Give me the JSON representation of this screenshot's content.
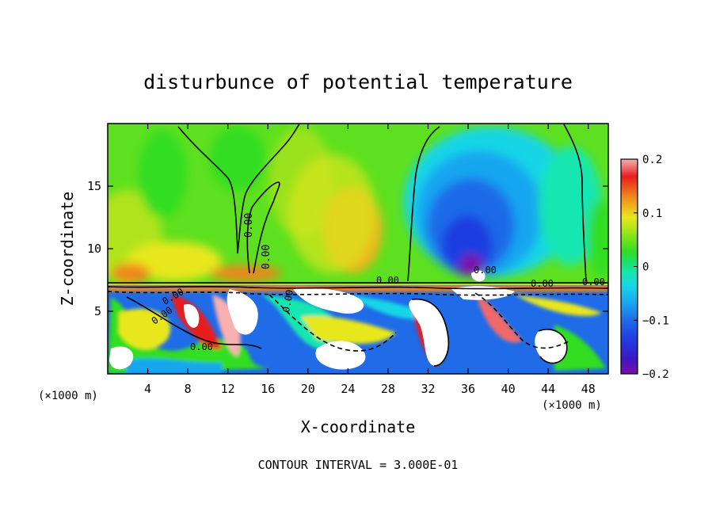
{
  "chart_data": {
    "type": "heatmap",
    "title": "disturbunce of potential temperature",
    "xlabel": "X-coordinate",
    "ylabel": "Z-coordinate",
    "x_unit_label": "(×1000 m)",
    "x_unit_label_right": "(×1000 m)",
    "xlim": [
      0,
      50
    ],
    "ylim": [
      0,
      20
    ],
    "x_ticks": [
      4,
      8,
      12,
      16,
      20,
      24,
      28,
      32,
      36,
      40,
      44,
      48
    ],
    "y_ticks": [
      5,
      10,
      15
    ],
    "colorbar": {
      "min": -0.2,
      "max": 0.2,
      "tick_values": [
        0.2,
        0.1,
        0,
        -0.1,
        -0.2
      ],
      "tick_labels": [
        "0.2",
        "0.1",
        "0",
        "−0.1",
        "−0.2"
      ],
      "colors": [
        "#7a0ea8",
        "#3f16c4",
        "#1f3de0",
        "#1f6be8",
        "#18a6f0",
        "#17d6e6",
        "#17e6b0",
        "#19e06c",
        "#33dd22",
        "#77e21a",
        "#b5e51a",
        "#e8e71c",
        "#f0b21c",
        "#f0841c",
        "#ea4a1c",
        "#e81c1c",
        "#f06a6a",
        "#f8b0b0"
      ]
    },
    "contour_labels": [
      "0.00",
      "0.00",
      "0.00",
      "0.00",
      "0.00",
      "0.00",
      "0.00",
      "0.00",
      "0.00",
      "0.00"
    ],
    "footer": "CONTOUR INTERVAL = 3.000E-01",
    "fields": [
      {
        "name": "upper-background",
        "value": 0.02
      },
      {
        "name": "left-upper-warm",
        "value": 0.07
      },
      {
        "name": "center-warm-patch",
        "value": 0.11
      },
      {
        "name": "right-cold-dome",
        "value": -0.12
      },
      {
        "name": "right-cold-core",
        "value": -0.17
      },
      {
        "name": "left-upper-cool",
        "value": 0.04
      }
    ]
  }
}
